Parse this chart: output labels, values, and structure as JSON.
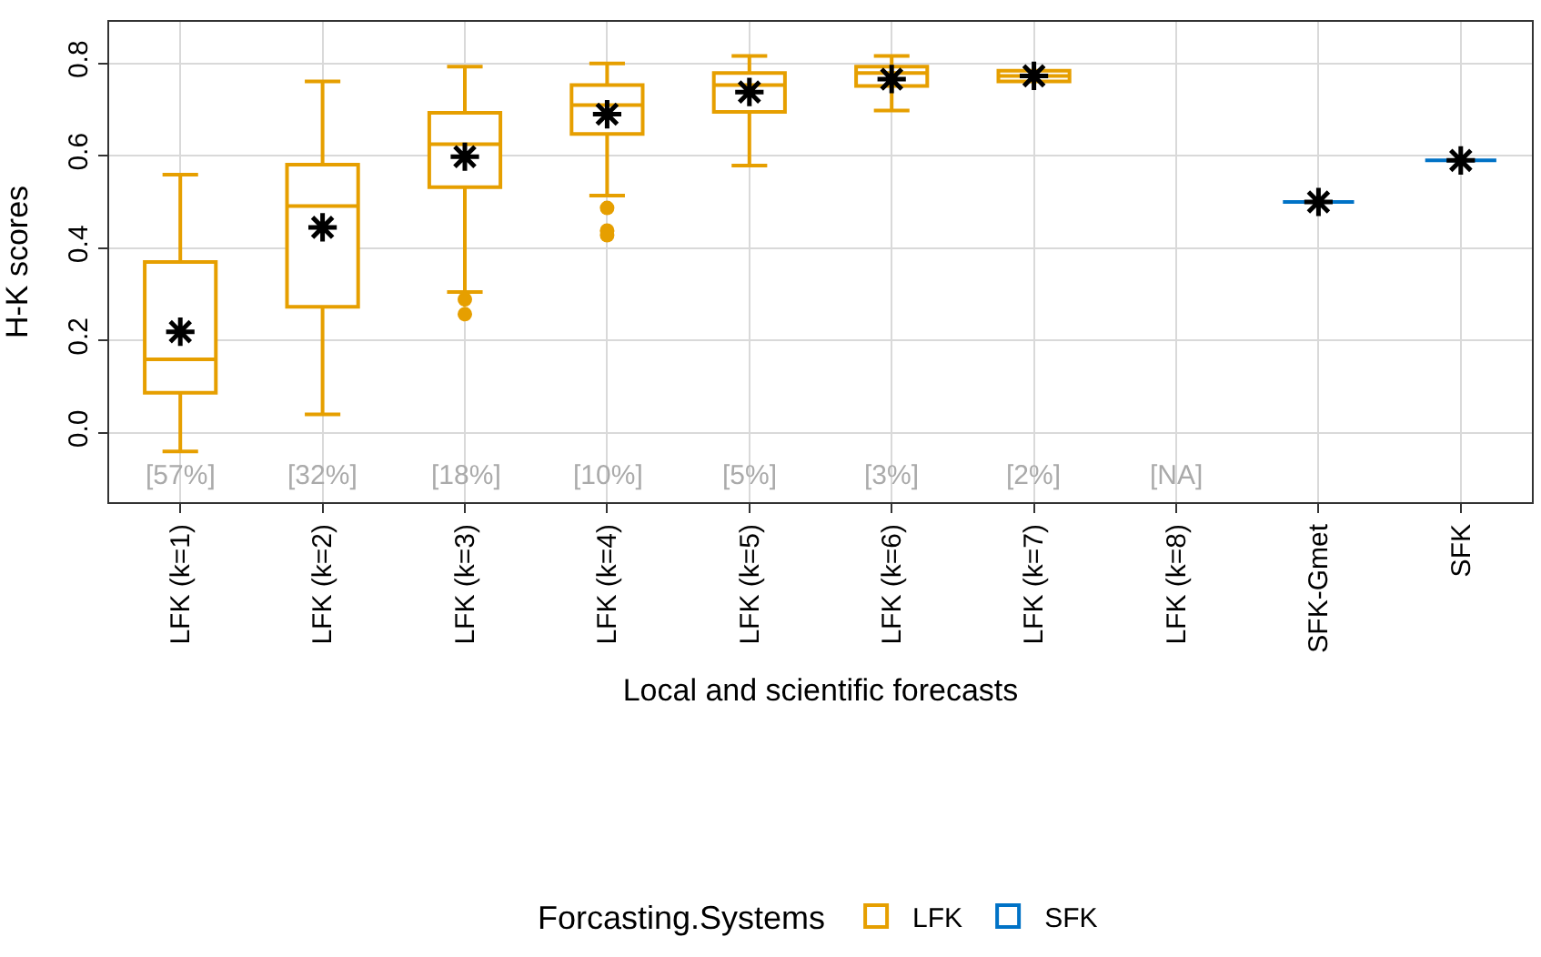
{
  "chart_data": {
    "type": "box",
    "ylabel": "H-K scores",
    "xlabel": "Local and scientific forecasts",
    "legend_title": "Forcasting.Systems",
    "categories": [
      "LFK (k=1)",
      "LFK (k=2)",
      "LFK (k=3)",
      "LFK (k=4)",
      "LFK (k=5)",
      "LFK (k=6)",
      "LFK (k=7)",
      "LFK (k=8)",
      "SFK-Gmet",
      "SFK"
    ],
    "ylim": [
      -0.15,
      0.89
    ],
    "yticks": [
      {
        "value": 0,
        "label": "0.0"
      },
      {
        "value": 0.2,
        "label": "0.2"
      },
      {
        "value": 0.4,
        "label": "0.4"
      },
      {
        "value": 0.6,
        "label": "0.6"
      },
      {
        "value": 0.8,
        "label": "0.8"
      }
    ],
    "grid": true,
    "legend": "bottom",
    "marker": "star",
    "series": [
      {
        "name": "LFK",
        "color": "#e69f00",
        "boxes": [
          {
            "low": -0.04,
            "q1": 0.087,
            "median": 0.159,
            "q3": 0.37,
            "high": 0.559,
            "mean": 0.219
          },
          {
            "low": 0.04,
            "q1": 0.273,
            "median": 0.491,
            "q3": 0.581,
            "high": 0.761,
            "mean": 0.445
          },
          {
            "low": 0.305,
            "q1": 0.532,
            "median": 0.625,
            "q3": 0.693,
            "high": 0.793,
            "mean": 0.598,
            "outliers": [
              0.289,
              0.257
            ]
          },
          {
            "low": 0.514,
            "q1": 0.647,
            "median": 0.71,
            "q3": 0.753,
            "high": 0.8,
            "mean": 0.69,
            "outliers": [
              0.487,
              0.438,
              0.428
            ]
          },
          {
            "low": 0.579,
            "q1": 0.695,
            "median": 0.753,
            "q3": 0.779,
            "high": 0.816,
            "mean": 0.738
          },
          {
            "low": 0.698,
            "q1": 0.751,
            "median": 0.779,
            "q3": 0.793,
            "high": 0.816,
            "mean": 0.766
          },
          {
            "low": 0.761,
            "q1": 0.761,
            "median": 0.773,
            "q3": 0.784,
            "high": 0.784,
            "mean": 0.773
          },
          null,
          null,
          null
        ]
      },
      {
        "name": "SFK",
        "color": "#0072c6",
        "boxes": [
          null,
          null,
          null,
          null,
          null,
          null,
          null,
          null,
          {
            "low": 0.5,
            "q1": 0.5,
            "median": 0.5,
            "q3": 0.5,
            "high": 0.5,
            "mean": 0.5
          },
          {
            "low": 0.59,
            "q1": 0.59,
            "median": 0.59,
            "q3": 0.59,
            "high": 0.59,
            "mean": 0.59
          }
        ]
      }
    ],
    "annotations": [
      "[57%]",
      "[32%]",
      "[18%]",
      "[10%]",
      "[5%]",
      "[3%]",
      "[2%]",
      "[NA]"
    ]
  }
}
